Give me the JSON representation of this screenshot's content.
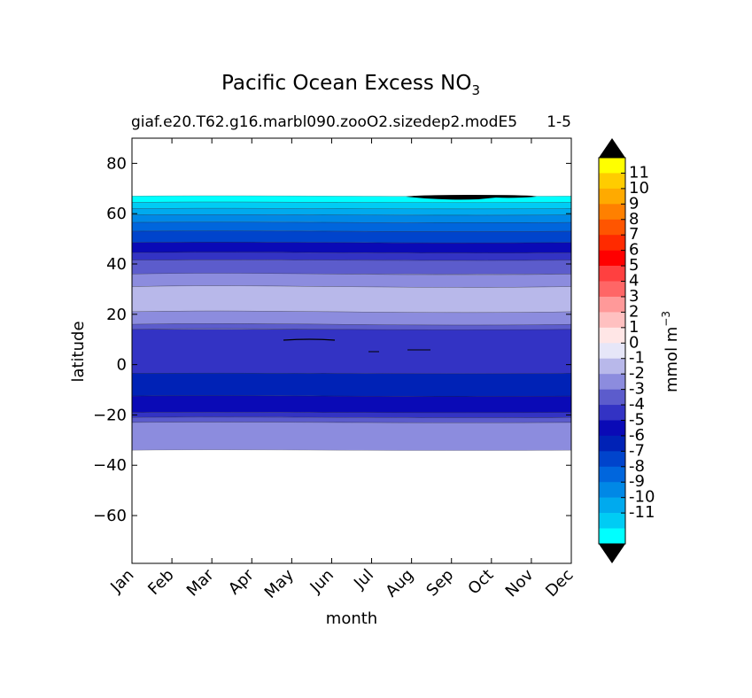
{
  "chart_data": {
    "type": "heatmap",
    "title": "Pacific Ocean Excess NO",
    "title_subscript": "3",
    "subtitle": "giaf.e20.T62.g16.marbl090.zooO2.sizedep2.modE5",
    "subtitle_right": "1-5",
    "xlabel": "month",
    "ylabel": "latitude",
    "x_ticks": [
      "Jan",
      "Feb",
      "Mar",
      "Apr",
      "May",
      "Jun",
      "Jul",
      "Aug",
      "Sep",
      "Oct",
      "Nov",
      "Dec"
    ],
    "y_ticks": [
      "80",
      "60",
      "40",
      "20",
      "0",
      "−20",
      "−40",
      "−60"
    ],
    "ylim": [
      -79,
      90
    ],
    "colorbar": {
      "label": "mmol m",
      "label_sup": "−3",
      "levels": [
        "11",
        "10",
        "9",
        "8",
        "7",
        "6",
        "5",
        "4",
        "3",
        "2",
        "1",
        "0",
        "-1",
        "-2",
        "-3",
        "-4",
        "-5",
        "-6",
        "-7",
        "-8",
        "-9",
        "-10",
        "-11"
      ],
      "colors": [
        "#ffff00",
        "#ffcc00",
        "#ffaa00",
        "#ff8000",
        "#ff5500",
        "#ff2a00",
        "#ff0000",
        "#ff4040",
        "#ff6666",
        "#ff9999",
        "#ffc0c0",
        "#ffe6e6",
        "#e6e6f8",
        "#b8b8ea",
        "#8c8cde",
        "#5c5ccc",
        "#3333c4",
        "#0a0ab6",
        "#0022b6",
        "#0044cc",
        "#0066dd",
        "#0088e6",
        "#00aaee",
        "#00ccf4",
        "#00ffff"
      ],
      "over_color": "#000000",
      "under_color": "#000000"
    },
    "bands": [
      {
        "from": 64.5,
        "to": 67,
        "color": "#00ffff"
      },
      {
        "from": 62,
        "to": 64.5,
        "color": "#00ccf4"
      },
      {
        "from": 59.5,
        "to": 62,
        "color": "#00aaee"
      },
      {
        "from": 56.5,
        "to": 59.5,
        "color": "#0088e6"
      },
      {
        "from": 53,
        "to": 56.5,
        "color": "#0066dd"
      },
      {
        "from": 48.5,
        "to": 53,
        "color": "#0044cc"
      },
      {
        "from": 44.5,
        "to": 48.5,
        "color": "#0a0ab6"
      },
      {
        "from": 41.5,
        "to": 44.5,
        "color": "#3333c4"
      },
      {
        "from": 36,
        "to": 41.5,
        "color": "#5c5ccc"
      },
      {
        "from": 31,
        "to": 36,
        "color": "#8c8cde"
      },
      {
        "from": 21,
        "to": 31,
        "color": "#b8b8ea"
      },
      {
        "from": 16,
        "to": 21,
        "color": "#8c8cde"
      },
      {
        "from": 14,
        "to": 16,
        "color": "#5c5ccc"
      },
      {
        "from": -3.5,
        "to": 14,
        "color": "#3333c4"
      },
      {
        "from": -12.5,
        "to": -3.5,
        "color": "#0022b6"
      },
      {
        "from": -19,
        "to": -12.5,
        "color": "#0a0ab6"
      },
      {
        "from": -21,
        "to": -19,
        "color": "#3333c4"
      },
      {
        "from": -23,
        "to": -21,
        "color": "#5c5ccc"
      },
      {
        "from": -34,
        "to": -23,
        "color": "#8c8cde"
      }
    ]
  }
}
